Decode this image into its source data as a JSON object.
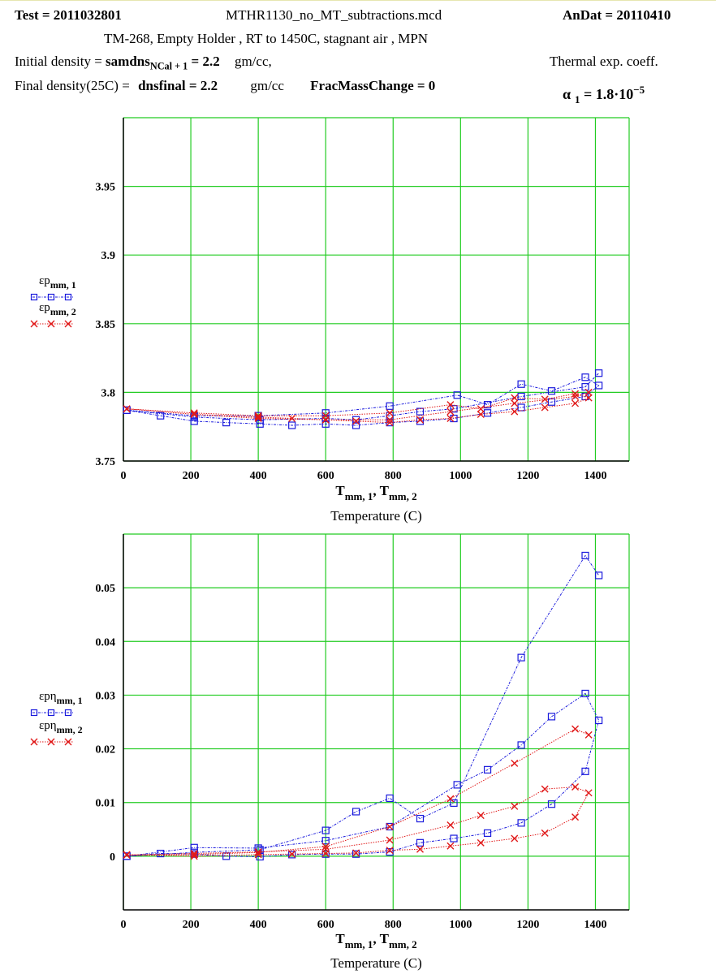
{
  "header": {
    "test_label": "Test = 2011032801",
    "filename": "MTHR1130_no_MT_subtractions.mcd",
    "andat_label": "AnDat = 20110410",
    "subtitle": "TM-268, Empty Holder , RT to 1450C, stagnant air , MPN",
    "initial_density_label": "Initial density =",
    "initial_density_var": "samdns",
    "initial_density_sub": "NCal + 1",
    "initial_density_value": "= 2.2",
    "initial_density_unit": "gm/cc,",
    "final_density_label": "Final density(25C) =",
    "final_density_var": "dnsfinal",
    "final_density_value": "= 2.2",
    "final_density_unit": "gm/cc",
    "frac_mass_change": "FracMassChange = 0",
    "thermal_label": "Thermal exp. coeff.",
    "alpha_symbol": "α",
    "alpha_sub": "1",
    "alpha_value": "= 1.8·10",
    "alpha_exp": "−5"
  },
  "colors": {
    "grid": "#22cc22",
    "series1": "#1a1adc",
    "series2": "#e01a1a"
  },
  "chart_data": [
    {
      "type": "line",
      "xlabel": "T",
      "xlabel_sub1": "mm, 1",
      "xlabel_sep": ", T",
      "xlabel_sub2": "mm, 2",
      "xlabel2": "Temperature (C)",
      "xlim": [
        0,
        1500
      ],
      "ylim": [
        3.75,
        4.0
      ],
      "xticks": [
        0,
        200,
        400,
        600,
        800,
        1000,
        1200,
        1400
      ],
      "yticks": [
        3.75,
        3.8,
        3.85,
        3.9,
        3.95
      ],
      "xtick_labels": [
        "0",
        "200",
        "400",
        "600",
        "800",
        "1000",
        "1200",
        "1400"
      ],
      "ytick_labels": [
        "3.75",
        "3.8",
        "3.85",
        "3.9",
        "3.95"
      ],
      "grid": true,
      "legend_position": "left",
      "series": [
        {
          "name": "εp",
          "name_sub": "mm, 1",
          "marker": "square",
          "x": [
            10,
            110,
            210,
            305,
            405,
            500,
            600,
            690,
            790,
            880,
            980,
            1080,
            1180,
            1270,
            1370,
            1410,
            1370,
            1270,
            1180,
            1080,
            990,
            790,
            600,
            400,
            210,
            10,
            210,
            405,
            600,
            690,
            790,
            880,
            980,
            1180,
            1370,
            1410
          ],
          "y": [
            3.787,
            3.783,
            3.779,
            3.778,
            3.777,
            3.776,
            3.777,
            3.776,
            3.778,
            3.779,
            3.781,
            3.785,
            3.789,
            3.793,
            3.797,
            3.805,
            3.811,
            3.801,
            3.806,
            3.791,
            3.798,
            3.79,
            3.785,
            3.783,
            3.783,
            3.787,
            3.782,
            3.78,
            3.781,
            3.78,
            3.783,
            3.786,
            3.788,
            3.797,
            3.804,
            3.814
          ]
        },
        {
          "name": "εp",
          "name_sub": "mm, 2",
          "marker": "x",
          "x": [
            10,
            210,
            400,
            500,
            600,
            690,
            790,
            880,
            970,
            1060,
            1160,
            1250,
            1340,
            1380,
            1340,
            1250,
            1160,
            1060,
            970,
            790,
            600,
            400,
            210,
            10,
            210,
            400,
            600,
            790,
            970,
            1160,
            1340,
            1380
          ],
          "y": [
            3.788,
            3.784,
            3.782,
            3.781,
            3.78,
            3.779,
            3.778,
            3.78,
            3.781,
            3.784,
            3.786,
            3.789,
            3.792,
            3.796,
            3.799,
            3.795,
            3.796,
            3.788,
            3.791,
            3.785,
            3.783,
            3.783,
            3.785,
            3.788,
            3.784,
            3.781,
            3.78,
            3.78,
            3.786,
            3.792,
            3.797,
            3.8
          ]
        }
      ]
    },
    {
      "type": "line",
      "xlabel": "T",
      "xlabel_sub1": "mm, 1",
      "xlabel_sep": ", T",
      "xlabel_sub2": "mm, 2",
      "xlabel2": "Temperature (C)",
      "xlim": [
        0,
        1500
      ],
      "ylim": [
        -0.01,
        0.06
      ],
      "xticks": [
        0,
        200,
        400,
        600,
        800,
        1000,
        1200,
        1400
      ],
      "yticks": [
        0,
        0.01,
        0.02,
        0.03,
        0.04,
        0.05
      ],
      "xtick_labels": [
        "0",
        "200",
        "400",
        "600",
        "800",
        "1000",
        "1200",
        "1400"
      ],
      "ytick_labels": [
        "0",
        "0.01",
        "0.02",
        "0.03",
        "0.04",
        "0.05"
      ],
      "grid": true,
      "legend_position": "left",
      "series": [
        {
          "name": "εpη",
          "name_sub": "mm, 1",
          "marker": "square",
          "x": [
            10,
            110,
            210,
            305,
            405,
            500,
            600,
            690,
            790,
            880,
            980,
            1080,
            1180,
            1270,
            1370,
            1410,
            1370,
            1270,
            1180,
            1080,
            990,
            790,
            600,
            400,
            210,
            10,
            210,
            405,
            600,
            690,
            790,
            880,
            980,
            1180,
            1370,
            1410
          ],
          "y": [
            0.0,
            0.0005,
            0.0004,
            0.0,
            -0.0001,
            0.0003,
            0.0004,
            0.0004,
            0.0008,
            0.0025,
            0.0033,
            0.0043,
            0.0062,
            0.0097,
            0.0158,
            0.0253,
            0.0303,
            0.026,
            0.0207,
            0.0161,
            0.0133,
            0.0055,
            0.0029,
            0.0015,
            0.0016,
            0.0,
            0.0007,
            0.0012,
            0.0048,
            0.0083,
            0.0108,
            0.007,
            0.0099,
            0.037,
            0.056,
            0.0523
          ]
        },
        {
          "name": "εpη",
          "name_sub": "mm, 2",
          "marker": "x",
          "x": [
            10,
            210,
            400,
            500,
            600,
            690,
            790,
            880,
            970,
            1060,
            1160,
            1250,
            1340,
            1380,
            1340,
            1250,
            1160,
            1060,
            970,
            790,
            600,
            400,
            210,
            10,
            210,
            400,
            600,
            790,
            970,
            1160,
            1340,
            1380
          ],
          "y": [
            0.0003,
            0.0,
            0.0003,
            0.0004,
            0.0005,
            0.0006,
            0.0011,
            0.0013,
            0.0019,
            0.0025,
            0.0033,
            0.0043,
            0.0073,
            0.0118,
            0.0129,
            0.0125,
            0.0093,
            0.0076,
            0.0058,
            0.003,
            0.0013,
            0.0008,
            0.0005,
            0.0002,
            0.0003,
            0.0007,
            0.0018,
            0.0055,
            0.0107,
            0.0173,
            0.0237,
            0.0226
          ]
        }
      ]
    }
  ]
}
